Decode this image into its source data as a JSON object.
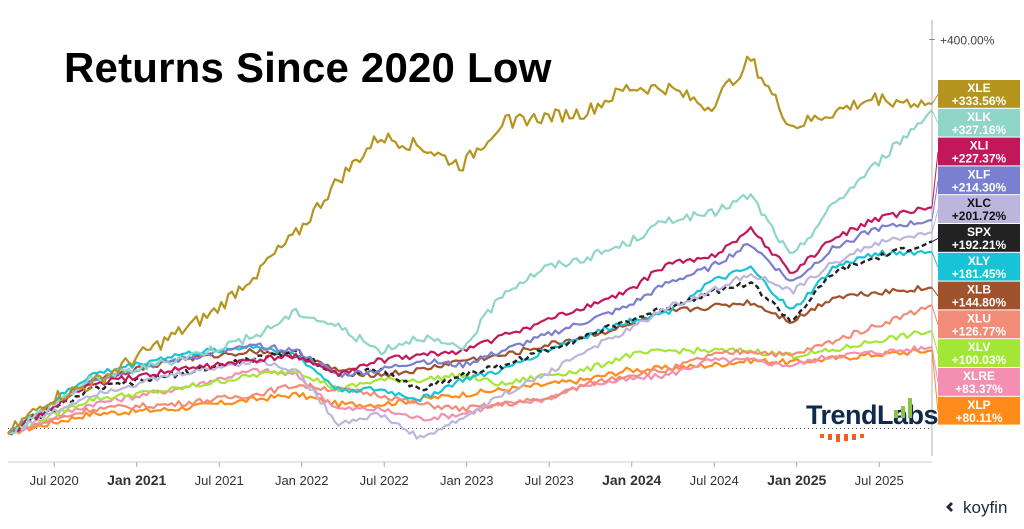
{
  "title": "Returns Since 2020 Low",
  "brand": {
    "logo_text": "TrendLabs",
    "watermark": "koyfin"
  },
  "chart_data": {
    "type": "line",
    "title": "Returns Since 2020 Low",
    "x_tick_labels": [
      "Jul 2020",
      "Jan 2021",
      "Jul 2021",
      "Jan 2022",
      "Jul 2022",
      "Jan 2023",
      "Jul 2023",
      "Jan 2024",
      "Jul 2024",
      "Jan 2025",
      "Jul 2025"
    ],
    "bold_ticks": [
      "Jan 2021",
      "Jan 2024",
      "Jan 2025"
    ],
    "y_tick_labels": [
      "+400.00%"
    ],
    "ylim": [
      -20,
      420
    ],
    "xlim": [
      "2020-03-23",
      "2025-10-31"
    ],
    "baseline": 0,
    "grid": false,
    "legend": "right",
    "series": [
      {
        "name": "XLE",
        "label": "+333.56%",
        "color": "#b5951f",
        "values": [
          [
            0,
            -5
          ],
          [
            0.25,
            30
          ],
          [
            0.5,
            45
          ],
          [
            0.75,
            70
          ],
          [
            1,
            95
          ],
          [
            1.25,
            120
          ],
          [
            1.5,
            160
          ],
          [
            1.75,
            200
          ],
          [
            2,
            255
          ],
          [
            2.25,
            300
          ],
          [
            2.5,
            290
          ],
          [
            2.75,
            270
          ],
          [
            3,
            315
          ],
          [
            3.25,
            320
          ],
          [
            3.5,
            325
          ],
          [
            3.75,
            350
          ],
          [
            4,
            350
          ],
          [
            4.25,
            330
          ],
          [
            4.5,
            380
          ],
          [
            4.75,
            310
          ],
          [
            5,
            325
          ],
          [
            5.25,
            340
          ],
          [
            5.6,
            333.56
          ]
        ]
      },
      {
        "name": "XLK",
        "label": "+327.16%",
        "color": "#8fd6c8",
        "values": [
          [
            0,
            -5
          ],
          [
            0.5,
            50
          ],
          [
            1,
            70
          ],
          [
            1.5,
            95
          ],
          [
            1.75,
            120
          ],
          [
            2,
            105
          ],
          [
            2.25,
            80
          ],
          [
            2.5,
            95
          ],
          [
            2.75,
            80
          ],
          [
            3,
            140
          ],
          [
            3.25,
            165
          ],
          [
            3.5,
            175
          ],
          [
            3.75,
            190
          ],
          [
            4,
            215
          ],
          [
            4.25,
            220
          ],
          [
            4.5,
            240
          ],
          [
            4.75,
            175
          ],
          [
            5,
            230
          ],
          [
            5.25,
            270
          ],
          [
            5.6,
            327.16
          ]
        ]
      },
      {
        "name": "XLI",
        "label": "+227.37%",
        "color": "#c2185b",
        "values": [
          [
            0,
            -5
          ],
          [
            0.5,
            45
          ],
          [
            1,
            60
          ],
          [
            1.5,
            70
          ],
          [
            1.75,
            75
          ],
          [
            2,
            55
          ],
          [
            2.25,
            70
          ],
          [
            2.5,
            75
          ],
          [
            2.75,
            80
          ],
          [
            3,
            95
          ],
          [
            3.25,
            110
          ],
          [
            3.5,
            125
          ],
          [
            3.75,
            140
          ],
          [
            4,
            170
          ],
          [
            4.25,
            175
          ],
          [
            4.5,
            205
          ],
          [
            4.75,
            160
          ],
          [
            5,
            195
          ],
          [
            5.25,
            215
          ],
          [
            5.6,
            227.37
          ]
        ]
      },
      {
        "name": "XLF",
        "label": "+214.30%",
        "color": "#7b7fcf",
        "values": [
          [
            0,
            -5
          ],
          [
            0.5,
            50
          ],
          [
            1,
            70
          ],
          [
            1.5,
            85
          ],
          [
            1.75,
            80
          ],
          [
            2,
            55
          ],
          [
            2.25,
            60
          ],
          [
            2.5,
            70
          ],
          [
            2.75,
            65
          ],
          [
            3,
            80
          ],
          [
            3.25,
            95
          ],
          [
            3.5,
            110
          ],
          [
            3.75,
            125
          ],
          [
            4,
            150
          ],
          [
            4.25,
            165
          ],
          [
            4.5,
            190
          ],
          [
            4.75,
            150
          ],
          [
            5,
            185
          ],
          [
            5.25,
            205
          ],
          [
            5.6,
            214.3
          ]
        ]
      },
      {
        "name": "XLC",
        "label": "+201.72%",
        "color": "#bdb6dc",
        "values": [
          [
            0,
            -5
          ],
          [
            0.5,
            35
          ],
          [
            1,
            55
          ],
          [
            1.5,
            70
          ],
          [
            1.75,
            60
          ],
          [
            2,
            5
          ],
          [
            2.25,
            15
          ],
          [
            2.5,
            -10
          ],
          [
            2.75,
            10
          ],
          [
            3,
            35
          ],
          [
            3.25,
            55
          ],
          [
            3.5,
            80
          ],
          [
            3.75,
            100
          ],
          [
            4,
            125
          ],
          [
            4.25,
            140
          ],
          [
            4.5,
            160
          ],
          [
            4.75,
            140
          ],
          [
            5,
            170
          ],
          [
            5.25,
            190
          ],
          [
            5.6,
            201.72
          ]
        ]
      },
      {
        "name": "SPX",
        "label": "+192.21%",
        "color": "#222222",
        "values": [
          [
            0,
            -5
          ],
          [
            0.5,
            40
          ],
          [
            1,
            55
          ],
          [
            1.5,
            72
          ],
          [
            1.75,
            80
          ],
          [
            2,
            55
          ],
          [
            2.25,
            60
          ],
          [
            2.5,
            40
          ],
          [
            2.75,
            55
          ],
          [
            3,
            65
          ],
          [
            3.25,
            80
          ],
          [
            3.5,
            95
          ],
          [
            3.75,
            110
          ],
          [
            4,
            125
          ],
          [
            4.25,
            140
          ],
          [
            4.5,
            150
          ],
          [
            4.75,
            110
          ],
          [
            5,
            160
          ],
          [
            5.25,
            175
          ],
          [
            5.6,
            192.21
          ]
        ]
      },
      {
        "name": "XLY",
        "label": "+181.45%",
        "color": "#17c3d6",
        "values": [
          [
            0,
            -5
          ],
          [
            0.5,
            55
          ],
          [
            1,
            75
          ],
          [
            1.5,
            85
          ],
          [
            1.75,
            75
          ],
          [
            2,
            40
          ],
          [
            2.25,
            40
          ],
          [
            2.5,
            30
          ],
          [
            2.75,
            50
          ],
          [
            3,
            60
          ],
          [
            3.25,
            80
          ],
          [
            3.5,
            95
          ],
          [
            3.75,
            110
          ],
          [
            4,
            120
          ],
          [
            4.25,
            150
          ],
          [
            4.5,
            165
          ],
          [
            4.75,
            120
          ],
          [
            5,
            165
          ],
          [
            5.25,
            180
          ],
          [
            5.6,
            181.45
          ]
        ]
      },
      {
        "name": "XLB",
        "label": "+144.80%",
        "color": "#a0522d",
        "values": [
          [
            0,
            -5
          ],
          [
            0.5,
            50
          ],
          [
            1,
            70
          ],
          [
            1.5,
            80
          ],
          [
            1.75,
            75
          ],
          [
            2,
            60
          ],
          [
            2.25,
            55
          ],
          [
            2.5,
            60
          ],
          [
            2.75,
            70
          ],
          [
            3,
            75
          ],
          [
            3.25,
            85
          ],
          [
            3.5,
            95
          ],
          [
            3.75,
            105
          ],
          [
            4,
            120
          ],
          [
            4.25,
            125
          ],
          [
            4.5,
            130
          ],
          [
            4.75,
            110
          ],
          [
            5,
            135
          ],
          [
            5.25,
            140
          ],
          [
            5.6,
            144.8
          ]
        ]
      },
      {
        "name": "XLU",
        "label": "+126.77%",
        "color": "#f28c78",
        "values": [
          [
            0,
            -5
          ],
          [
            0.5,
            20
          ],
          [
            1,
            25
          ],
          [
            1.5,
            35
          ],
          [
            1.75,
            45
          ],
          [
            2,
            40
          ],
          [
            2.25,
            35
          ],
          [
            2.5,
            25
          ],
          [
            2.75,
            20
          ],
          [
            3,
            25
          ],
          [
            3.25,
            30
          ],
          [
            3.5,
            45
          ],
          [
            3.75,
            55
          ],
          [
            4,
            60
          ],
          [
            4.25,
            75
          ],
          [
            4.5,
            80
          ],
          [
            4.75,
            75
          ],
          [
            5,
            90
          ],
          [
            5.25,
            105
          ],
          [
            5.6,
            126.77
          ]
        ]
      },
      {
        "name": "XLV",
        "label": "+100.03%",
        "color": "#a3e635",
        "values": [
          [
            0,
            -5
          ],
          [
            0.5,
            30
          ],
          [
            1,
            40
          ],
          [
            1.5,
            55
          ],
          [
            1.75,
            60
          ],
          [
            2,
            40
          ],
          [
            2.25,
            50
          ],
          [
            2.5,
            50
          ],
          [
            2.75,
            55
          ],
          [
            3,
            45
          ],
          [
            3.25,
            55
          ],
          [
            3.5,
            60
          ],
          [
            3.75,
            75
          ],
          [
            4,
            80
          ],
          [
            4.25,
            80
          ],
          [
            4.5,
            80
          ],
          [
            4.75,
            75
          ],
          [
            5,
            80
          ],
          [
            5.25,
            90
          ],
          [
            5.6,
            100.03
          ]
        ]
      },
      {
        "name": "XLRE",
        "label": "+83.37%",
        "color": "#f48fb1",
        "values": [
          [
            0,
            -5
          ],
          [
            0.5,
            25
          ],
          [
            1,
            40
          ],
          [
            1.5,
            60
          ],
          [
            1.75,
            55
          ],
          [
            2,
            20
          ],
          [
            2.25,
            20
          ],
          [
            2.5,
            10
          ],
          [
            2.75,
            15
          ],
          [
            3,
            25
          ],
          [
            3.25,
            30
          ],
          [
            3.5,
            45
          ],
          [
            3.75,
            50
          ],
          [
            4,
            55
          ],
          [
            4.25,
            70
          ],
          [
            4.5,
            70
          ],
          [
            4.75,
            65
          ],
          [
            5,
            75
          ],
          [
            5.25,
            78
          ],
          [
            5.6,
            83.37
          ]
        ]
      },
      {
        "name": "XLP",
        "label": "+80.11%",
        "color": "#ff8c1a",
        "values": [
          [
            0,
            -5
          ],
          [
            0.5,
            15
          ],
          [
            1,
            20
          ],
          [
            1.5,
            30
          ],
          [
            1.75,
            35
          ],
          [
            2,
            25
          ],
          [
            2.25,
            25
          ],
          [
            2.5,
            30
          ],
          [
            2.75,
            35
          ],
          [
            3,
            40
          ],
          [
            3.25,
            45
          ],
          [
            3.5,
            50
          ],
          [
            3.75,
            60
          ],
          [
            4,
            62
          ],
          [
            4.25,
            65
          ],
          [
            4.5,
            70
          ],
          [
            4.75,
            68
          ],
          [
            5,
            72
          ],
          [
            5.25,
            76
          ],
          [
            5.6,
            80.11
          ]
        ]
      }
    ]
  }
}
